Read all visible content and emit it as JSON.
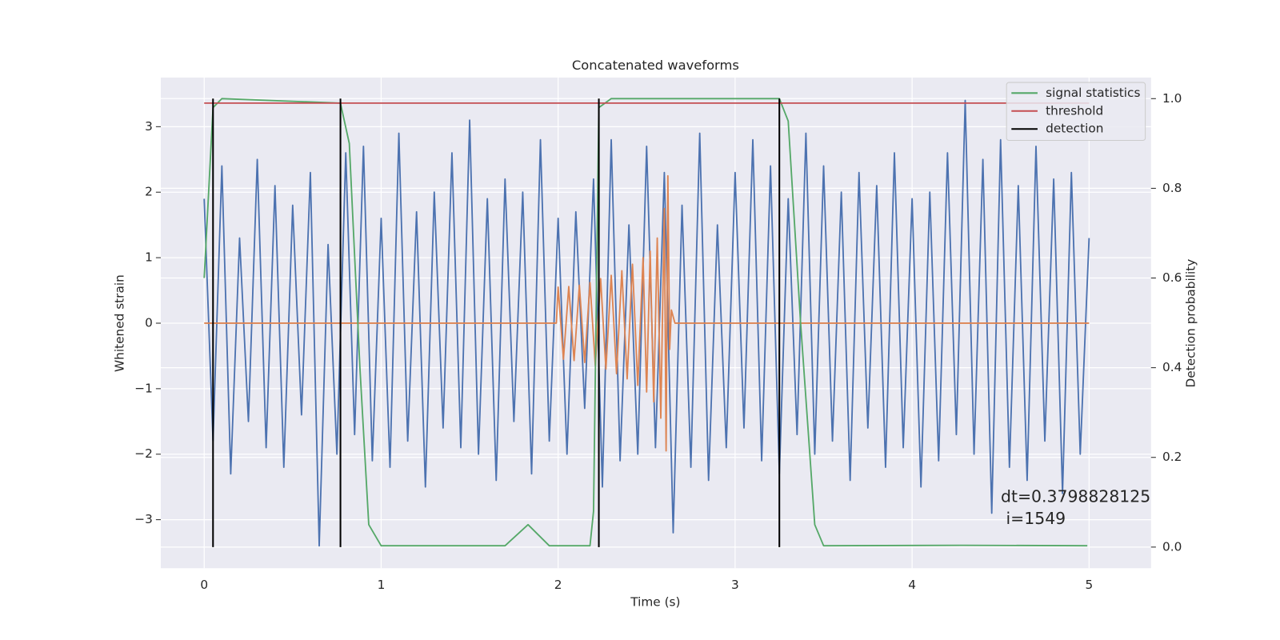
{
  "chart_data": {
    "type": "line",
    "title": "Concatenated waveforms",
    "xlabel": "Time (s)",
    "ylabel": "Whitened strain",
    "y2label": "Detection probability",
    "xlim": [
      -0.245,
      5.35
    ],
    "ylim": [
      -3.74,
      3.75
    ],
    "y2lim": [
      -0.047,
      1.047
    ],
    "xticks": [
      0,
      1,
      2,
      3,
      4,
      5
    ],
    "yticks": [
      {
        "value": -3,
        "label": "−3"
      },
      {
        "value": -2,
        "label": "−2"
      },
      {
        "value": -1,
        "label": "−1"
      },
      0,
      1,
      2,
      3
    ],
    "y2ticks": [
      {
        "value": 0,
        "label": "0.0"
      },
      0.2,
      0.4,
      0.6,
      0.8,
      {
        "value": 1,
        "label": "1.0"
      }
    ],
    "grid": true,
    "legend": "upper right",
    "annotation": [
      "dt=0.3798828125",
      " i=1549"
    ],
    "series": [
      {
        "color": "#4c72b0",
        "x": [
          0,
          0.05,
          0.1,
          0.15,
          0.2,
          0.25,
          0.3,
          0.35,
          0.4,
          0.45,
          0.5,
          0.55,
          0.6,
          0.65,
          0.7,
          0.75,
          0.8,
          0.85,
          0.9,
          0.95,
          1,
          1.05,
          1.1,
          1.15,
          1.2,
          1.25,
          1.3,
          1.35,
          1.4,
          1.45,
          1.5,
          1.55,
          1.6,
          1.65,
          1.7,
          1.75,
          1.8,
          1.85,
          1.9,
          1.95,
          2,
          2.05,
          2.1,
          2.15,
          2.2,
          2.25,
          2.3,
          2.35,
          2.4,
          2.45,
          2.5,
          2.55,
          2.6,
          2.65,
          2.7,
          2.75,
          2.8,
          2.85,
          2.9,
          2.95,
          3,
          3.05,
          3.1,
          3.15,
          3.2,
          3.25,
          3.3,
          3.35,
          3.4,
          3.45,
          3.5,
          3.55,
          3.6,
          3.65,
          3.7,
          3.75,
          3.8,
          3.85,
          3.9,
          3.95,
          4,
          4.05,
          4.1,
          4.15,
          4.2,
          4.25,
          4.3,
          4.35,
          4.4,
          4.45,
          4.5,
          4.55,
          4.6,
          4.65,
          4.7,
          4.75,
          4.8,
          4.85,
          4.9,
          4.95,
          5
        ],
        "values": [
          1.9,
          -1.8,
          2.4,
          -2.3,
          1.3,
          -1.5,
          2.5,
          -1.9,
          2.1,
          -2.2,
          1.8,
          -1.4,
          2.3,
          -3.4,
          1.2,
          -2.0,
          2.6,
          -1.7,
          2.7,
          -2.1,
          1.6,
          -2.2,
          2.9,
          -1.8,
          1.7,
          -2.5,
          2.0,
          -1.6,
          2.6,
          -1.9,
          3.1,
          -2.0,
          1.9,
          -2.4,
          2.2,
          -1.5,
          2.0,
          -2.3,
          2.8,
          -1.8,
          1.6,
          -2.0,
          1.7,
          -1.3,
          2.2,
          -2.5,
          2.8,
          -2.1,
          1.5,
          -2.0,
          2.7,
          -1.9,
          2.3,
          -3.2,
          1.8,
          -2.2,
          2.9,
          -2.4,
          1.5,
          -1.9,
          2.3,
          -1.6,
          2.8,
          -2.1,
          2.4,
          -2.3,
          1.9,
          -1.7,
          2.9,
          -2.0,
          2.4,
          -1.8,
          2.0,
          -2.4,
          2.3,
          -1.6,
          2.1,
          -2.2,
          2.6,
          -1.9,
          1.9,
          -2.5,
          2.0,
          -2.1,
          2.6,
          -1.7,
          3.4,
          -2.0,
          2.5,
          -2.9,
          2.8,
          -2.2,
          2.1,
          -2.4,
          2.7,
          -1.8,
          2.2,
          -2.6,
          2.3,
          -2.0,
          1.3
        ]
      },
      {
        "color": "#dd8452",
        "x": [
          0,
          1.99,
          2.0,
          2.03,
          2.06,
          2.09,
          2.12,
          2.15,
          2.18,
          2.21,
          2.24,
          2.27,
          2.3,
          2.33,
          2.36,
          2.39,
          2.42,
          2.45,
          2.48,
          2.5,
          2.52,
          2.54,
          2.56,
          2.58,
          2.6,
          2.61,
          2.62,
          2.63,
          2.64,
          2.66,
          5
        ],
        "values": [
          0,
          0,
          0.55,
          -0.55,
          0.56,
          -0.57,
          0.58,
          -0.6,
          0.62,
          -0.65,
          0.68,
          -0.7,
          0.73,
          -0.77,
          0.8,
          -0.85,
          0.9,
          -0.95,
          1.0,
          -1.05,
          1.1,
          -1.2,
          1.3,
          -1.45,
          1.75,
          -1.95,
          2.25,
          -0.4,
          0.2,
          0,
          0
        ]
      },
      {
        "name": "signal statistics",
        "color": "#55a868",
        "axis": "y2",
        "x": [
          0,
          0.05,
          0.1,
          0.77,
          0.82,
          0.88,
          0.93,
          1.0,
          1.7,
          1.83,
          1.95,
          2.18,
          2.2,
          2.23,
          2.3,
          3.25,
          3.3,
          3.37,
          3.45,
          3.5,
          4.28,
          4.99
        ],
        "values": [
          0.6,
          0.98,
          1.0,
          0.99,
          0.9,
          0.4,
          0.05,
          0.003,
          0.003,
          0.05,
          0.003,
          0.003,
          0.08,
          0.98,
          1.0,
          1.0,
          0.95,
          0.5,
          0.05,
          0.003,
          0.004,
          0.003
        ]
      },
      {
        "name": "threshold",
        "color": "#c44e52",
        "axis": "y2",
        "x": [
          0,
          5
        ],
        "values": [
          0.99,
          0.99
        ]
      },
      {
        "name": "detection",
        "color": "#000000",
        "axis": "y2",
        "vlines": true,
        "x": [
          0.05,
          0.77,
          2.23,
          3.25
        ],
        "values": [
          1.0,
          1.0,
          1.0,
          1.0
        ]
      }
    ]
  }
}
